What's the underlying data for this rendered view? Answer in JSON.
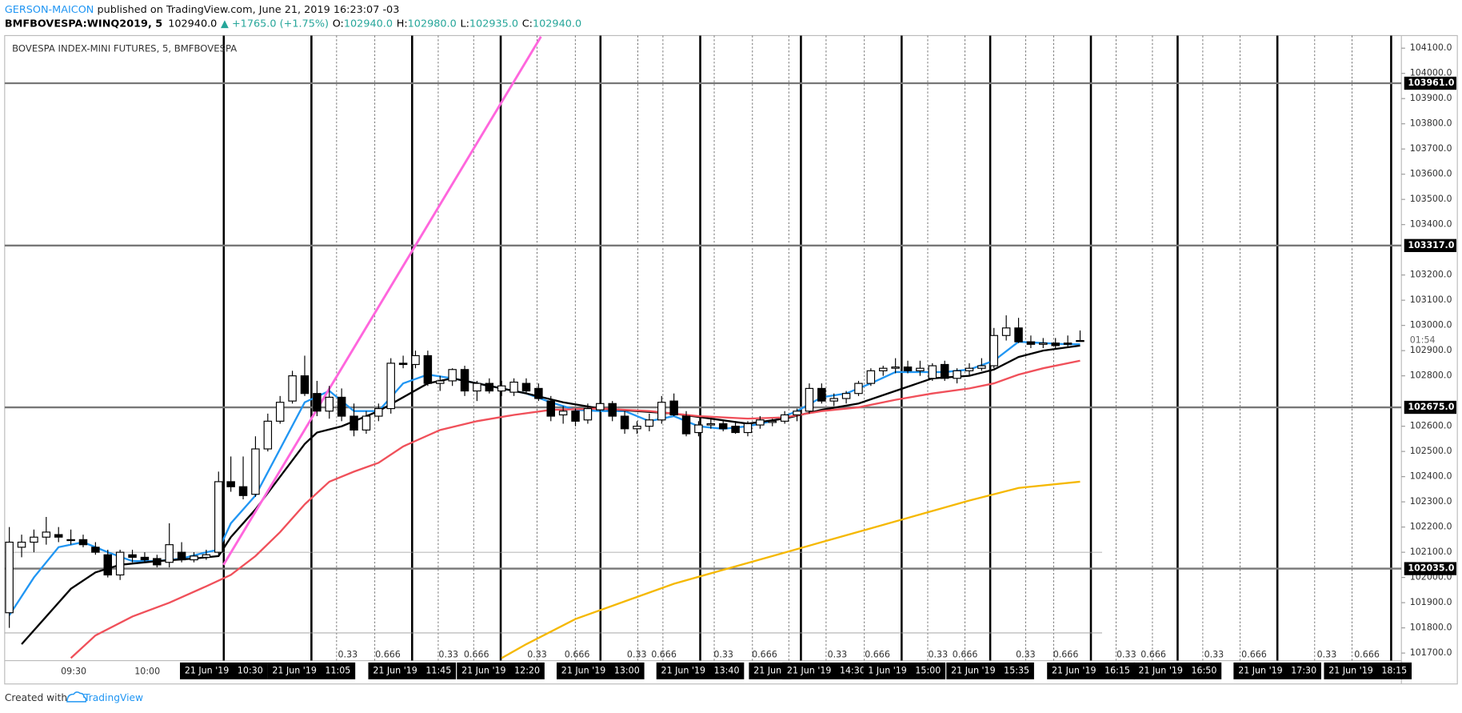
{
  "header": {
    "author": "GERSON-MAICON",
    "published": " published on TradingView.com, June 21, 2019 16:23:07 -03"
  },
  "legend": {
    "symbol": "BMFBOVESPA:WINQ2019, 5",
    "last": "102940.0",
    "change": "▲ +1765.0 (+1.75%)",
    "o_label": "O:",
    "o": "102940.0",
    "h_label": "H:",
    "h": "102980.0",
    "l_label": "L:",
    "l": "102935.0",
    "c_label": "C:",
    "c": "102940.0"
  },
  "footer": {
    "text": "Created with",
    "brand": "TradingView"
  },
  "chart_data": {
    "type": "candlestick",
    "title": "BOVESPA INDEX-MINI FUTURES, 5, BMFBOVESPA",
    "open": [
      101860,
      102120,
      102140,
      102160,
      102170,
      102150,
      102150,
      102120,
      102090,
      102010,
      102090,
      102080,
      102075,
      102060,
      102100,
      102070,
      102080,
      102100,
      102380,
      102360,
      102330,
      102510,
      102620,
      102700,
      102800,
      102730,
      102660,
      102715,
      102640,
      102585,
      102640,
      102670,
      102850,
      102845,
      102880,
      102770,
      102780,
      102825,
      102740,
      102770,
      102740,
      102735,
      102770,
      102750,
      102700,
      102645,
      102660,
      102625,
      102665,
      102690,
      102640,
      102590,
      102600,
      102625,
      102700,
      102640,
      102575,
      102605,
      102610,
      102600,
      102575,
      102605,
      102615,
      102620,
      102645,
      102660,
      102750,
      102700,
      102710,
      102730,
      102770,
      102820,
      102830,
      102835,
      102820,
      102790,
      102845,
      102790,
      102820,
      102830,
      102840,
      102960,
      102990,
      102935,
      102925,
      102930,
      102930,
      102940
    ],
    "high": [
      102200,
      102170,
      102190,
      102240,
      102200,
      102190,
      102170,
      102140,
      102110,
      102110,
      102110,
      102100,
      102090,
      102215,
      102140,
      102100,
      102110,
      102420,
      102480,
      102480,
      102560,
      102650,
      102720,
      102820,
      102880,
      102780,
      102760,
      102750,
      102690,
      102660,
      102690,
      102870,
      102880,
      102900,
      102900,
      102800,
      102830,
      102840,
      102780,
      102790,
      102780,
      102790,
      102790,
      102770,
      102720,
      102680,
      102670,
      102690,
      102710,
      102700,
      102660,
      102620,
      102650,
      102720,
      102730,
      102660,
      102620,
      102630,
      102625,
      102620,
      102620,
      102640,
      102630,
      102660,
      102670,
      102770,
      102770,
      102730,
      102740,
      102780,
      102830,
      102840,
      102870,
      102860,
      102860,
      102850,
      102860,
      102830,
      102850,
      102870,
      102990,
      103040,
      103030,
      102960,
      102950,
      102950,
      102960,
      102980
    ],
    "low": [
      101800,
      102080,
      102100,
      102130,
      102140,
      102130,
      102120,
      102090,
      102000,
      101990,
      102060,
      102060,
      102040,
      102040,
      102060,
      102060,
      102070,
      102090,
      102340,
      102310,
      102320,
      102500,
      102610,
      102690,
      102720,
      102640,
      102630,
      102620,
      102560,
      102570,
      102620,
      102650,
      102830,
      102830,
      102760,
      102740,
      102760,
      102720,
      102700,
      102730,
      102720,
      102720,
      102730,
      102700,
      102620,
      102610,
      102600,
      102610,
      102640,
      102620,
      102570,
      102570,
      102580,
      102610,
      102640,
      102560,
      102560,
      102590,
      102580,
      102570,
      102560,
      102590,
      102600,
      102610,
      102620,
      102650,
      102690,
      102680,
      102690,
      102720,
      102760,
      102800,
      102810,
      102810,
      102800,
      102780,
      102780,
      102770,
      102800,
      102820,
      102830,
      102940,
      102930,
      102910,
      102910,
      102910,
      102910,
      102935
    ],
    "close": [
      102140,
      102140,
      102160,
      102180,
      102160,
      102150,
      102130,
      102100,
      102010,
      102100,
      102080,
      102070,
      102050,
      102130,
      102070,
      102085,
      102090,
      102380,
      102360,
      102325,
      102510,
      102620,
      102695,
      102800,
      102730,
      102660,
      102715,
      102640,
      102585,
      102640,
      102670,
      102850,
      102845,
      102880,
      102770,
      102780,
      102825,
      102740,
      102770,
      102740,
      102760,
      102775,
      102740,
      102710,
      102640,
      102660,
      102620,
      102670,
      102690,
      102640,
      102590,
      102600,
      102625,
      102695,
      102645,
      102570,
      102605,
      102610,
      102590,
      102575,
      102610,
      102625,
      102620,
      102645,
      102660,
      102750,
      102700,
      102710,
      102730,
      102770,
      102820,
      102830,
      102835,
      102820,
      102830,
      102840,
      102790,
      102820,
      102830,
      102840,
      102960,
      102990,
      102935,
      102925,
      102930,
      102920,
      102925,
      102940
    ],
    "up_color": "#ffffff",
    "down_color": "#000000",
    "series": [
      {
        "color": "#2196f3",
        "x": [
          0,
          2,
          4,
          6,
          8,
          10,
          12,
          14,
          16,
          17,
          18,
          20,
          22,
          24,
          26,
          28,
          30,
          32,
          34,
          36,
          38,
          40,
          42,
          44,
          46,
          48,
          50,
          52,
          54,
          56,
          58,
          60,
          62,
          64,
          66,
          68,
          70,
          72,
          74,
          76,
          78,
          80,
          82,
          84,
          86,
          87
        ],
        "values": [
          101850,
          102000,
          102120,
          102140,
          102100,
          102065,
          102065,
          102075,
          102100,
          102110,
          102215,
          102325,
          102510,
          102695,
          102740,
          102660,
          102660,
          102770,
          102805,
          102790,
          102770,
          102750,
          102730,
          102695,
          102665,
          102660,
          102660,
          102620,
          102640,
          102600,
          102590,
          102600,
          102620,
          102660,
          102715,
          102730,
          102770,
          102815,
          102815,
          102815,
          102825,
          102860,
          102935,
          102930,
          102925,
          102925
        ]
      },
      {
        "color": "#000000",
        "x": [
          1,
          3,
          5,
          7,
          9,
          12,
          15,
          17,
          18,
          20,
          22,
          24,
          25,
          27,
          30,
          32,
          34,
          36,
          38,
          40,
          42,
          45,
          48,
          51,
          54,
          57,
          60,
          63,
          66,
          69,
          72,
          75,
          78,
          80,
          82,
          84,
          87
        ],
        "values": [
          101735,
          101845,
          101955,
          102020,
          102050,
          102065,
          102075,
          102085,
          102160,
          102270,
          102400,
          102530,
          102575,
          102600,
          102660,
          102715,
          102770,
          102790,
          102770,
          102750,
          102730,
          102695,
          102670,
          102660,
          102650,
          102630,
          102610,
          102630,
          102665,
          102690,
          102740,
          102790,
          102800,
          102825,
          102875,
          102900,
          102920
        ]
      },
      {
        "color": "#f0505a",
        "x": [
          5,
          7,
          10,
          13,
          16,
          18,
          20,
          22,
          24,
          26,
          28,
          30,
          32,
          35,
          38,
          41,
          44,
          48,
          52,
          56,
          60,
          63,
          66,
          69,
          72,
          75,
          78,
          80,
          82,
          84,
          87
        ],
        "values": [
          101680,
          101770,
          101845,
          101900,
          101965,
          102010,
          102085,
          102180,
          102290,
          102380,
          102420,
          102455,
          102520,
          102585,
          102620,
          102645,
          102665,
          102670,
          102660,
          102640,
          102630,
          102635,
          102660,
          102675,
          102705,
          102730,
          102750,
          102770,
          102805,
          102830,
          102860
        ]
      },
      {
        "color": "#f5b800",
        "x": [
          40,
          42,
          46,
          50,
          54,
          58,
          62,
          66,
          70,
          74,
          78,
          82,
          87
        ],
        "values": [
          101680,
          101735,
          101835,
          101905,
          101975,
          102030,
          102085,
          102140,
          102195,
          102250,
          102305,
          102355,
          102380
        ]
      }
    ],
    "trendline": {
      "color": "#ff66dd",
      "x": [
        17.4,
        43.2
      ],
      "values": [
        102050,
        104146
      ]
    },
    "levels": [
      {
        "value": 103961,
        "label": "103961.0"
      },
      {
        "value": 103317,
        "label": "103317.0"
      },
      {
        "value": 102675,
        "label": "102675.0"
      },
      {
        "value": 102035,
        "label": "102035.0"
      }
    ],
    "minor_levels": [
      102100,
      101780
    ],
    "ylim": [
      101670,
      104150
    ],
    "yticks": [
      {
        "value": 101700,
        "label": "101700.0"
      },
      {
        "value": 101800,
        "label": "101800.0"
      },
      {
        "value": 101900,
        "label": "101900.0"
      },
      {
        "value": 102000,
        "label": "102000.0"
      },
      {
        "value": 102100,
        "label": "102100.0"
      },
      {
        "value": 102200,
        "label": "102200.0"
      },
      {
        "value": 102300,
        "label": "102300.0"
      },
      {
        "value": 102400,
        "label": "102400.0"
      },
      {
        "value": 102500,
        "label": "102500.0"
      },
      {
        "value": 102600,
        "label": "102600.0"
      },
      {
        "value": 102800,
        "label": "102800.0"
      },
      {
        "value": 102900,
        "label": "102900.0"
      },
      {
        "value": 103000,
        "label": "103000.0"
      },
      {
        "value": 103100,
        "label": "103100.0"
      },
      {
        "value": 103200,
        "label": "103200.0"
      },
      {
        "value": 103400,
        "label": "103400.0"
      },
      {
        "value": 103500,
        "label": "103500.0"
      },
      {
        "value": 103600,
        "label": "103600.0"
      },
      {
        "value": 103700,
        "label": "103700.0"
      },
      {
        "value": 103800,
        "label": "103800.0"
      },
      {
        "value": 103900,
        "label": "103900.0"
      },
      {
        "value": 104000,
        "label": "104000.0"
      },
      {
        "value": 104100,
        "label": "104100.0"
      }
    ],
    "countdown": "01:54",
    "time_labels": [
      "09:30",
      "10:00"
    ],
    "date_time_labels": [
      "21 Jun '19   10:30",
      "21 Jun '19   11:05",
      "21 Jun '19   11:45",
      "21 Jun '19   12:20",
      "21 Jun '19   13:00",
      "21 Jun '19   13:40",
      "21 Jun '",
      "21 Jun '19   14:30",
      "1 Jun '19   15:00",
      "21 Jun '19   15:35",
      "21 Jun '19   16:15",
      "21 Jun '19   16:50",
      "21 Jun '19   17:30",
      "21 Jun '19   18:15"
    ],
    "fib_labels": [
      0.33,
      0.666,
      0.33,
      0.666,
      0.33,
      0.666,
      0.33,
      0.666,
      0.33,
      0.666,
      0.33,
      0.666,
      0.33,
      0.666,
      0.33,
      0.666,
      0.33,
      0.666,
      0.33,
      0.666,
      0.33,
      0.666
    ]
  }
}
